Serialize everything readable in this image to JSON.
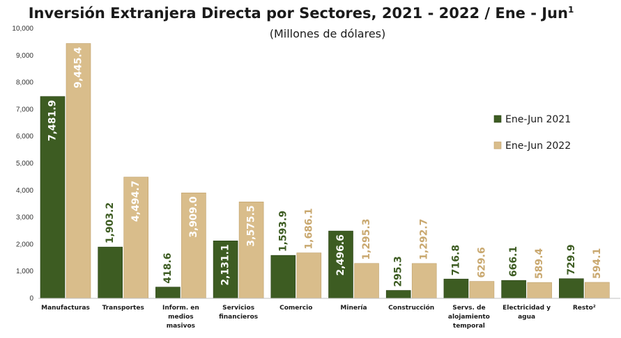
{
  "chart_data": {
    "type": "bar",
    "title": "Inversión Extranjera Directa por Sectores, 2021 - 2022 / Ene - Jun",
    "title_superscript": "1",
    "subtitle": "(Millones de dólares)",
    "ylim": [
      0,
      10000
    ],
    "yticks": [
      "0",
      "1,000",
      "2,000",
      "3,000",
      "4,000",
      "5,000",
      "6,000",
      "7,000",
      "8,000",
      "9,000",
      "10,000"
    ],
    "categories": [
      [
        "Manufacturas"
      ],
      [
        "Transportes"
      ],
      [
        "Inform. en",
        "medios",
        "masivos"
      ],
      [
        "Servicios",
        "financieros"
      ],
      [
        "Comercio"
      ],
      [
        "Minería"
      ],
      [
        "Construcción"
      ],
      [
        "Servs. de",
        "alojamiento",
        "temporal"
      ],
      [
        "Electricidad y",
        "agua"
      ],
      [
        "Resto²"
      ]
    ],
    "series": [
      {
        "name": "Ene-Jun 2021",
        "color": "#3d5c22",
        "values": [
          7481.9,
          1903.2,
          418.6,
          2131.1,
          1593.9,
          2496.6,
          295.3,
          716.8,
          666.1,
          729.9
        ],
        "labels": [
          "7,481.9",
          "1,903.2",
          "418.6",
          "2,131.1",
          "1,593.9",
          "2,496.6",
          "295.3",
          "716.8",
          "666.1",
          "729.9"
        ]
      },
      {
        "name": "Ene-Jun 2022",
        "color": "#d9bd8b",
        "values": [
          9445.4,
          4494.7,
          3909.0,
          3575.5,
          1686.1,
          1295.3,
          1292.7,
          629.6,
          589.4,
          594.1
        ],
        "labels": [
          "9,445.4",
          "4,494.7",
          "3,909.0",
          "3,575.5",
          "1,686.1",
          "1,295.3",
          "1,292.7",
          "629.6",
          "589.4",
          "594.1"
        ]
      }
    ],
    "legend_position": "right",
    "grid": false
  }
}
